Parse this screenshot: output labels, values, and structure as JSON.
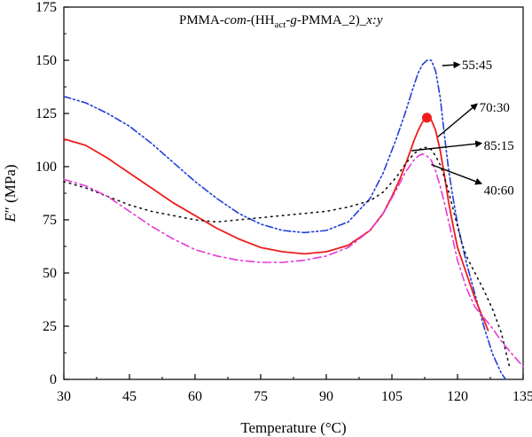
{
  "chart_data": {
    "type": "line",
    "title": {
      "prefix": "PMMA-",
      "com": "com",
      "open": "-(HH",
      "sub": "act",
      "dash1": "-",
      "g": "g",
      "mid": "-PMMA_2)_",
      "xy": "x:y"
    },
    "xlabel": "Temperature (°C)",
    "ylabel": {
      "E": "E",
      "quote": "″",
      "unit": " (MPa)"
    },
    "xlim": [
      30,
      135
    ],
    "ylim": [
      0,
      175
    ],
    "xticks": [
      "30",
      "45",
      "60",
      "75",
      "90",
      "105",
      "120",
      "135"
    ],
    "yticks": [
      "0",
      "25",
      "50",
      "75",
      "100",
      "125",
      "150",
      "175"
    ],
    "grid": false,
    "series": [
      {
        "name": "55:45",
        "color": "#1f3fd6",
        "dash": "dash-dot-dot",
        "x": [
          30,
          35,
          40,
          45,
          50,
          55,
          60,
          65,
          70,
          75,
          80,
          85,
          90,
          95,
          100,
          103,
          106,
          108,
          110,
          111,
          112,
          113,
          114,
          115,
          116,
          117,
          118,
          119,
          120,
          122,
          124,
          126,
          128,
          130,
          131
        ],
        "y": [
          133,
          130,
          125,
          119,
          111,
          102,
          93,
          85,
          78,
          73,
          70,
          69,
          70,
          74,
          85,
          97,
          113,
          125,
          138,
          144,
          148,
          150,
          150,
          145,
          133,
          115,
          98,
          85,
          73,
          55,
          40,
          25,
          12,
          3,
          0
        ]
      },
      {
        "name": "70:30",
        "color": "#ee1c1c",
        "dash": "solid",
        "x": [
          30,
          35,
          40,
          45,
          50,
          55,
          60,
          65,
          70,
          75,
          80,
          85,
          90,
          95,
          100,
          103,
          105,
          107,
          109,
          110,
          111,
          112,
          113,
          114,
          115,
          116,
          117,
          118,
          119,
          120,
          122,
          124,
          126,
          127
        ],
        "y": [
          113,
          110,
          104,
          97,
          90,
          83,
          77,
          71,
          66,
          62,
          60,
          59,
          60,
          63,
          70,
          78,
          86,
          95,
          106,
          112,
          117,
          121,
          123,
          122,
          117,
          108,
          96,
          83,
          72,
          62,
          50,
          38,
          28,
          23
        ]
      },
      {
        "name": "85:15",
        "color": "#111111",
        "dash": "dotted",
        "x": [
          30,
          35,
          40,
          45,
          50,
          55,
          60,
          65,
          70,
          75,
          80,
          85,
          90,
          95,
          100,
          103,
          106,
          108,
          110,
          112,
          113,
          114,
          115,
          116,
          117,
          118,
          119,
          120,
          121,
          122,
          124,
          126,
          128,
          130,
          132
        ],
        "y": [
          93,
          90,
          86,
          82,
          79,
          77,
          75,
          74,
          75,
          76,
          77,
          78,
          79,
          81,
          84,
          88,
          95,
          101,
          106,
          109,
          109,
          108,
          105,
          101,
          95,
          88,
          80,
          72,
          64,
          58,
          50,
          42,
          33,
          22,
          5
        ]
      },
      {
        "name": "40:60",
        "color": "#e639d8",
        "dash": "dash-dot",
        "x": [
          30,
          35,
          40,
          45,
          50,
          55,
          60,
          65,
          70,
          75,
          80,
          85,
          90,
          95,
          100,
          103,
          106,
          108,
          110,
          111,
          112,
          113,
          114,
          115,
          116,
          117,
          118,
          119,
          120,
          122,
          124,
          126,
          128,
          130,
          132,
          135
        ],
        "y": [
          94,
          91,
          86,
          79,
          72,
          66,
          61,
          58,
          56,
          55,
          55,
          56,
          58,
          62,
          70,
          78,
          89,
          97,
          103,
          105,
          106,
          105,
          103,
          98,
          91,
          83,
          74,
          65,
          56,
          43,
          34,
          29,
          24,
          18,
          13,
          6
        ]
      }
    ],
    "marker": {
      "series": "70:30",
      "x": 113,
      "y": 123,
      "color": "#ee1c1c"
    },
    "annotations": [
      {
        "label": "55:45",
        "text_x": 121,
        "text_y": 148,
        "arrow_from_x": 116.5,
        "arrow_from_y": 147.5,
        "arrow_to_x": 120.5,
        "arrow_to_y": 148
      },
      {
        "label": "70:30",
        "text_x": 125,
        "text_y": 128,
        "arrow_from_x": 115.5,
        "arrow_from_y": 114,
        "arrow_to_x": 124.5,
        "arrow_to_y": 129.5
      },
      {
        "label": "85:15",
        "text_x": 126,
        "text_y": 110,
        "arrow_from_x": 109.5,
        "arrow_from_y": 107.5,
        "arrow_to_x": 125.5,
        "arrow_to_y": 111
      },
      {
        "label": "40:60",
        "text_x": 126,
        "text_y": 89,
        "arrow_from_x": 114,
        "arrow_from_y": 101,
        "arrow_to_x": 125.5,
        "arrow_to_y": 92
      }
    ]
  }
}
